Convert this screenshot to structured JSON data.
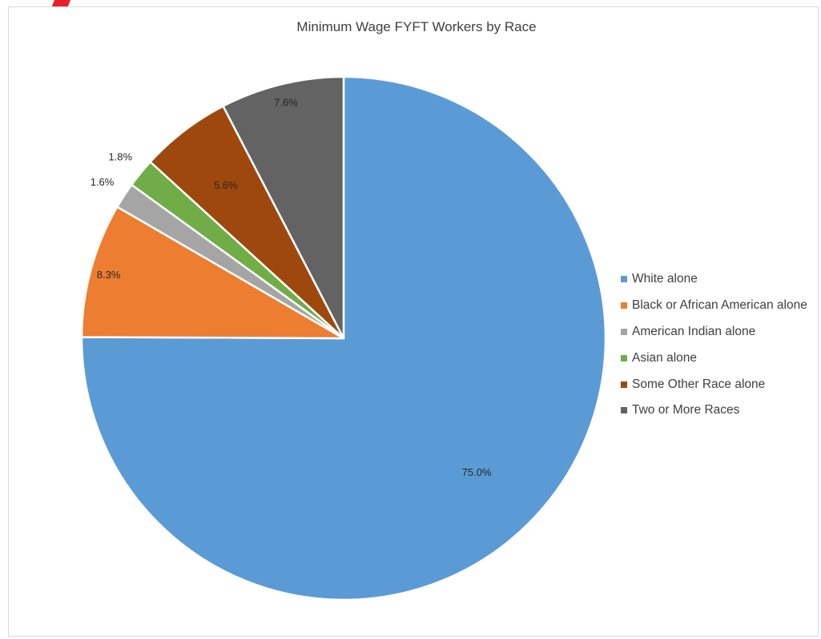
{
  "colors": {
    "corner_mark": "#e8202a",
    "frame_border": "#d9d9d9",
    "text": "#404040"
  },
  "chart_data": {
    "type": "pie",
    "title": "Minimum Wage FYFT Workers by Race",
    "legend_position": "right",
    "slice_order": "clockwise from 12 o'clock",
    "slices": [
      {
        "label": "White alone",
        "value": 75.0,
        "value_label": "75.0%",
        "color": "#5b9bd5"
      },
      {
        "label": "Black or African American alone",
        "value": 8.3,
        "value_label": "8.3%",
        "color": "#ed7d31"
      },
      {
        "label": "American Indian alone",
        "value": 1.6,
        "value_label": "1.6%",
        "color": "#a5a5a5"
      },
      {
        "label": "Asian alone",
        "value": 1.8,
        "value_label": "1.8%",
        "color": "#70ad47"
      },
      {
        "label": "Some Other Race alone",
        "value": 5.6,
        "value_label": "5.6%",
        "color": "#9e480e"
      },
      {
        "label": "Two or More Races",
        "value": 7.6,
        "value_label": "7.6%",
        "color": "#636363"
      }
    ]
  }
}
